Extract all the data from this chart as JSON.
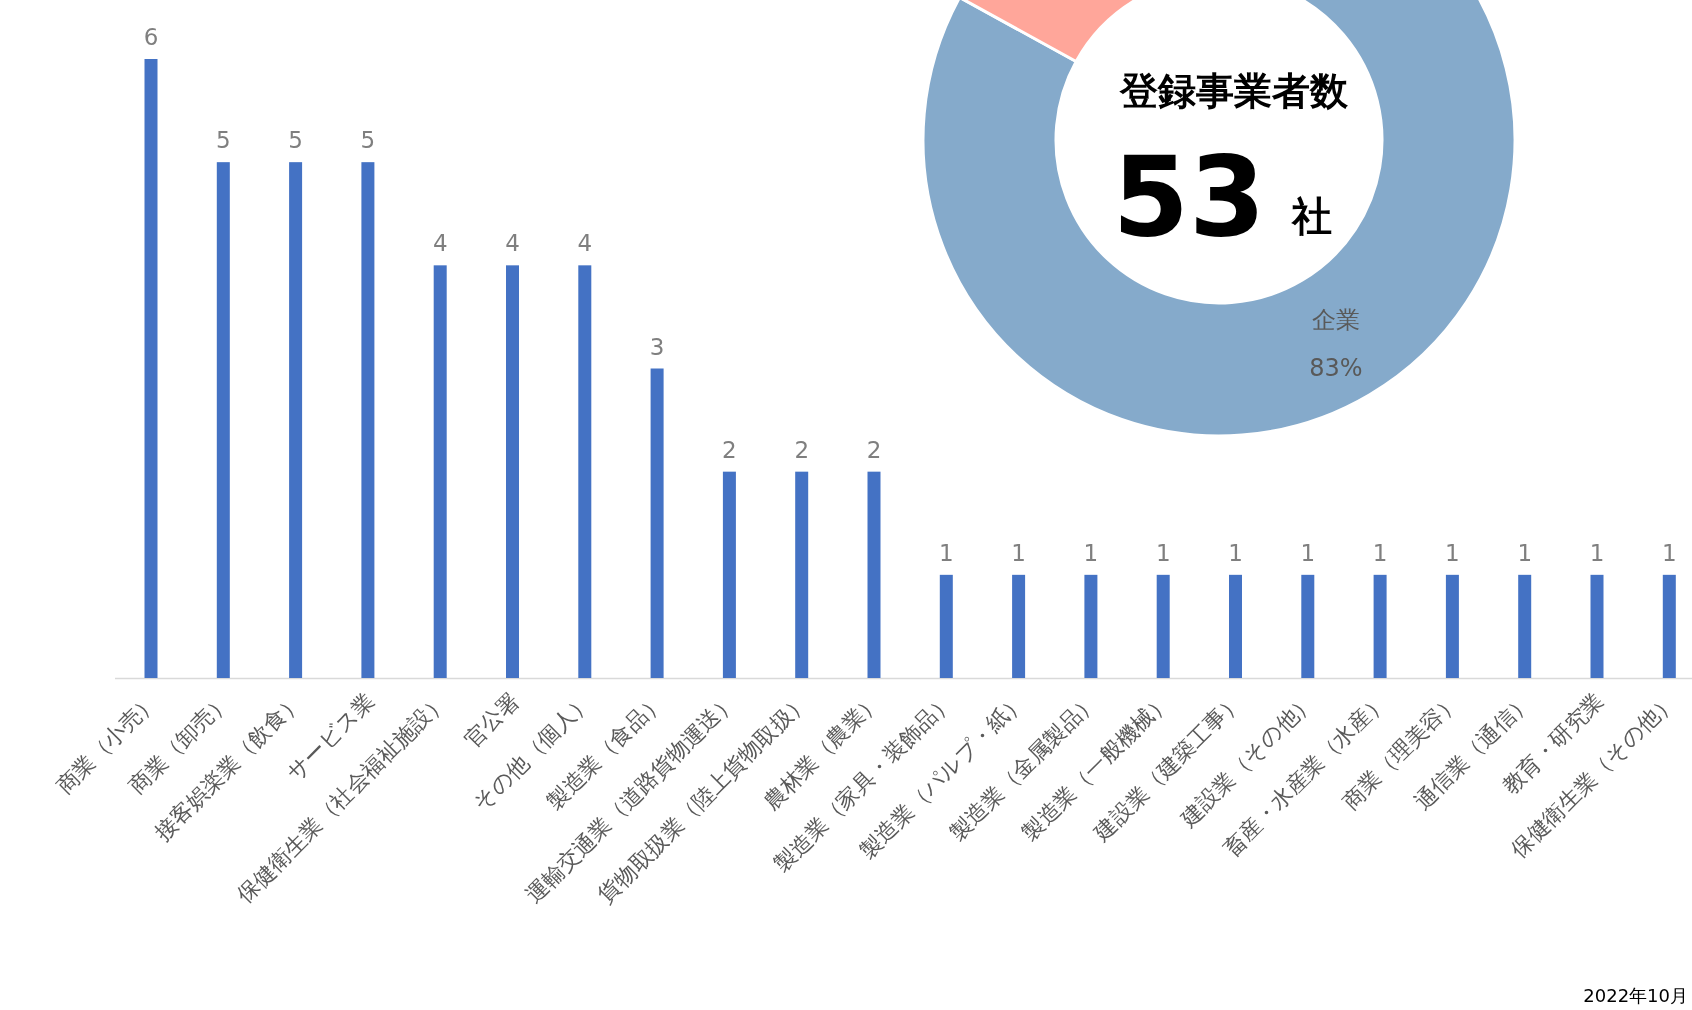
{
  "chart_data": [
    {
      "type": "bar",
      "categories": [
        "商業（小売）",
        "商業（卸売）",
        "接客娯楽業（飲食）",
        "サービス業",
        "保健衛生業（社会福祉施設）",
        "官公署",
        "その他（個人）",
        "製造業（食品）",
        "運輸交通業（道路貨物運送）",
        "貨物取扱業（陸上貨物取扱）",
        "農林業（農業）",
        "製造業（家具・装飾品）",
        "製造業（パルプ・紙）",
        "製造業（金属製品）",
        "製造業（一般機械）",
        "建設業（建築工事）",
        "建設業（その他）",
        "畜産・水産業（水産）",
        "商業（理美容）",
        "通信業（通信）",
        "教育・研究業",
        "保健衛生業（その他）"
      ],
      "values": [
        6,
        5,
        5,
        5,
        4,
        4,
        4,
        3,
        2,
        2,
        2,
        1,
        1,
        1,
        1,
        1,
        1,
        1,
        1,
        1,
        1,
        1
      ],
      "color": "#4472c4",
      "data_labels": true,
      "annotations": [
        "2022年10月"
      ]
    },
    {
      "type": "donut",
      "categories": [
        "企業",
        null
      ],
      "values": [
        83,
        17
      ],
      "colors": [
        "#85aacb",
        "#ffa69a"
      ],
      "value_labels": [
        "83%",
        null
      ],
      "annotations": [
        "登録事業者数",
        "53",
        "社"
      ]
    }
  ]
}
